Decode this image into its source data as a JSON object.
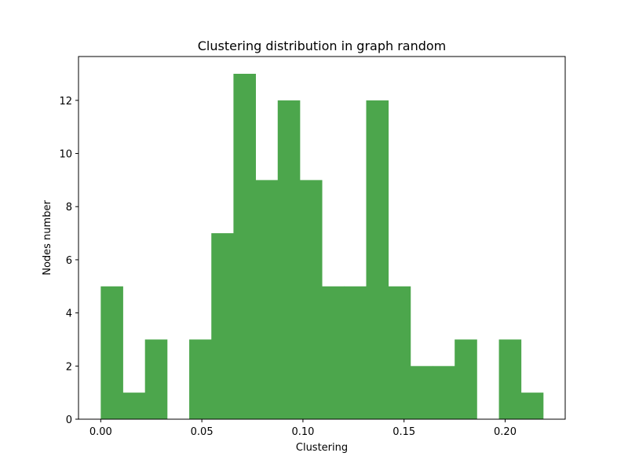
{
  "chart_data": {
    "type": "bar",
    "title": "Clustering distribution in graph random",
    "xlabel": "Clustering",
    "ylabel": "Nodes number",
    "bin_start": 0.0,
    "bin_width": 0.01094,
    "values": [
      5,
      1,
      3,
      0,
      3,
      7,
      13,
      9,
      12,
      9,
      5,
      5,
      12,
      5,
      2,
      2,
      3,
      0,
      3,
      1
    ],
    "xlim": [
      -0.011,
      0.2297
    ],
    "ylim": [
      0,
      13.65
    ],
    "xticks": [
      0.0,
      0.05,
      0.1,
      0.15,
      0.2
    ],
    "xtick_labels": [
      "0.00",
      "0.05",
      "0.10",
      "0.15",
      "0.20"
    ],
    "yticks": [
      0,
      2,
      4,
      6,
      8,
      10,
      12
    ],
    "ytick_labels": [
      "0",
      "2",
      "4",
      "6",
      "8",
      "10",
      "12"
    ],
    "bar_color": "#4ca64c",
    "grid": false,
    "legend": "none"
  }
}
